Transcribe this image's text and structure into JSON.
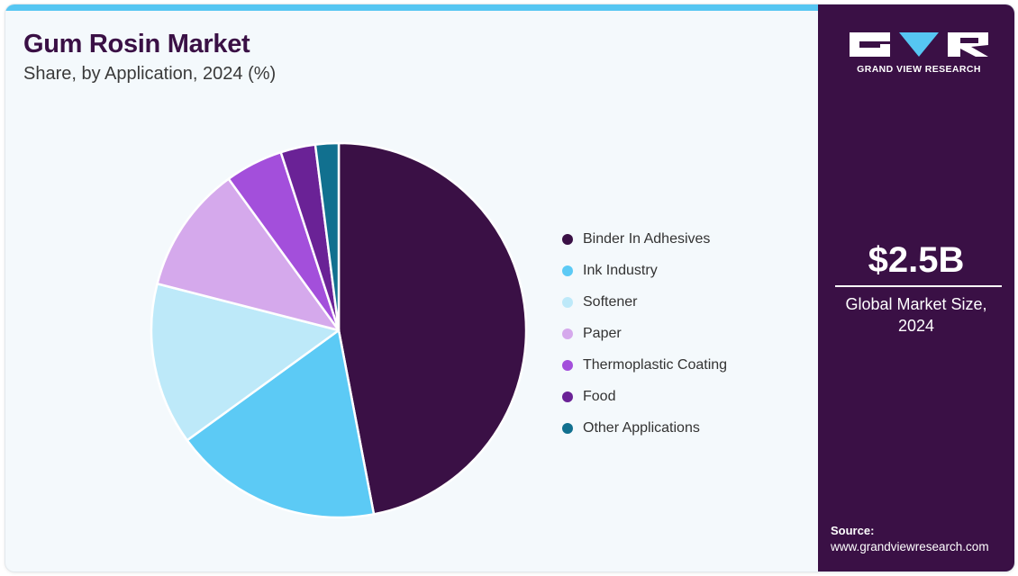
{
  "header": {
    "title": "Gum Rosin Market",
    "subtitle": "Share, by Application, 2024 (%)"
  },
  "chart_data": {
    "type": "pie",
    "title": "Gum Rosin Market",
    "subtitle": "Share, by Application, 2024 (%)",
    "legend_position": "right",
    "slices": [
      {
        "label": "Binder In Adhesives",
        "value": 47,
        "color": "#3a1045"
      },
      {
        "label": "Ink Industry",
        "value": 18,
        "color": "#5ccaf5"
      },
      {
        "label": "Softener",
        "value": 14,
        "color": "#bde9f9"
      },
      {
        "label": "Paper",
        "value": 11,
        "color": "#d5a9ec"
      },
      {
        "label": "Thermoplastic Coating",
        "value": 5,
        "color": "#a34fdb"
      },
      {
        "label": "Food",
        "value": 3,
        "color": "#6a2296"
      },
      {
        "label": "Other Applications",
        "value": 2,
        "color": "#11708f"
      }
    ]
  },
  "side_panel": {
    "logo_text": "GRAND VIEW RESEARCH",
    "market_size": "$2.5B",
    "market_label": "Global Market Size, 2024",
    "source_label": "Source:",
    "source_url": "www.grandviewresearch.com",
    "background_color": "#3a1045",
    "accent_color": "#56c6f2"
  }
}
